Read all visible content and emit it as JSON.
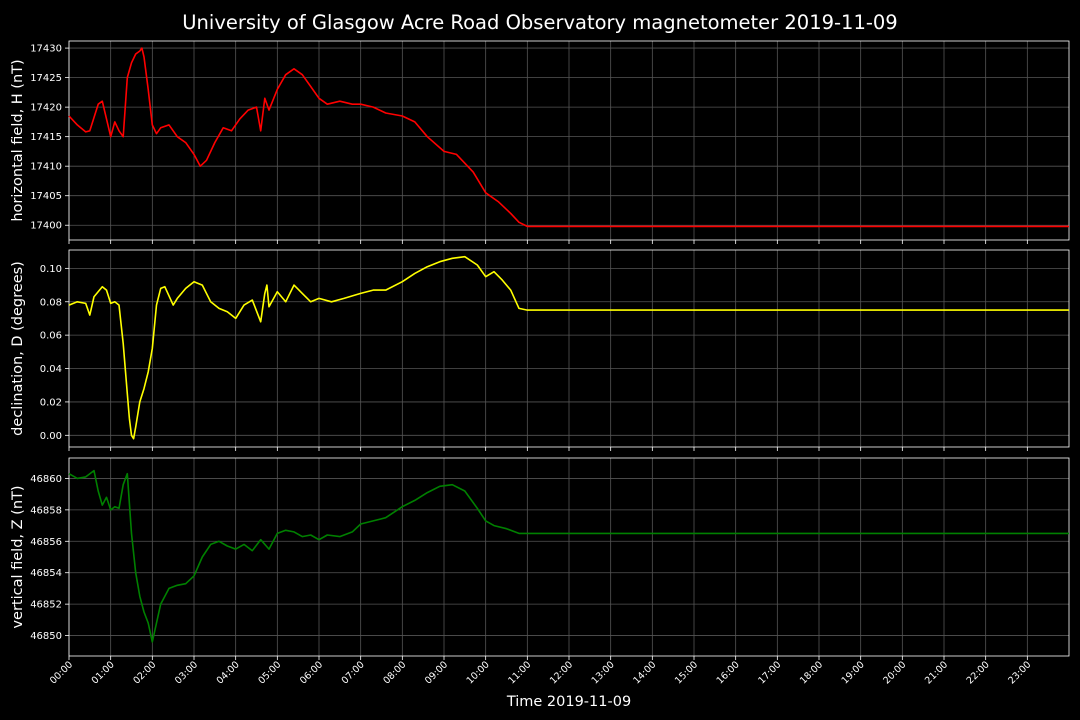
{
  "title": "University of Glasgow Acre Road Observatory magnetometer 2019-11-09",
  "xlabel": "Time 2019-11-09",
  "xticks": [
    "00:00",
    "01:00",
    "02:00",
    "03:00",
    "04:00",
    "05:00",
    "06:00",
    "07:00",
    "08:00",
    "09:00",
    "10:00",
    "11:00",
    "12:00",
    "13:00",
    "14:00",
    "15:00",
    "16:00",
    "17:00",
    "18:00",
    "19:00",
    "20:00",
    "21:00",
    "22:00",
    "23:00"
  ],
  "chart_data": [
    {
      "type": "line",
      "ylabel": "horizontal field, H (nT)",
      "color": "#ff0000",
      "ylim": [
        17397.5,
        17431.2
      ],
      "xlim": [
        0,
        24
      ],
      "yticks": [
        17400,
        17405,
        17410,
        17415,
        17420,
        17425,
        17430
      ],
      "grid": true,
      "series": [
        {
          "x": [
            0,
            0.2,
            0.4,
            0.5,
            0.7,
            0.8,
            0.9,
            1.0,
            1.1,
            1.2,
            1.3,
            1.4,
            1.5,
            1.6,
            1.7,
            1.75,
            1.8,
            1.9,
            2.0,
            2.1,
            2.2,
            2.4,
            2.6,
            2.8,
            3.0,
            3.15,
            3.3,
            3.5,
            3.7,
            3.9,
            4.1,
            4.3,
            4.5,
            4.6,
            4.7,
            4.8,
            5.0,
            5.2,
            5.4,
            5.6,
            5.8,
            6.0,
            6.2,
            6.5,
            6.8,
            7.0,
            7.3,
            7.6,
            8.0,
            8.3,
            8.6,
            9.0,
            9.3,
            9.5,
            9.7,
            10.0,
            10.3,
            10.6,
            10.8,
            11.0,
            24.0
          ],
          "y": [
            17418.5,
            17417.0,
            17415.8,
            17416.0,
            17420.5,
            17421.0,
            17418.0,
            17415.0,
            17417.5,
            17416.0,
            17415.0,
            17425.0,
            17427.5,
            17429.0,
            17429.5,
            17430.0,
            17428.5,
            17423.0,
            17417.0,
            17415.5,
            17416.5,
            17417.0,
            17415.0,
            17414.0,
            17412.0,
            17410.0,
            17411.0,
            17414.0,
            17416.5,
            17416.0,
            17418.0,
            17419.5,
            17420.0,
            17416.0,
            17421.5,
            17419.5,
            17423.0,
            17425.5,
            17426.5,
            17425.5,
            17423.5,
            17421.5,
            17420.5,
            17421.0,
            17420.5,
            17420.5,
            17420.0,
            17419.0,
            17418.5,
            17417.5,
            17415.0,
            17412.5,
            17412.0,
            17410.5,
            17409.0,
            17405.5,
            17404.0,
            17402.0,
            17400.5,
            17399.8,
            17399.8
          ]
        }
      ]
    },
    {
      "type": "line",
      "ylabel": "declination, D (degrees)",
      "color": "#ffff00",
      "ylim": [
        -0.007,
        0.111
      ],
      "xlim": [
        0,
        24
      ],
      "yticks": [
        0.0,
        0.02,
        0.04,
        0.06,
        0.08,
        0.1
      ],
      "yticklabels": [
        "0.00",
        "0.02",
        "0.04",
        "0.06",
        "0.08",
        "0.10"
      ],
      "grid": true,
      "series": [
        {
          "x": [
            0,
            0.2,
            0.4,
            0.5,
            0.6,
            0.8,
            0.9,
            1.0,
            1.1,
            1.2,
            1.3,
            1.4,
            1.45,
            1.5,
            1.55,
            1.6,
            1.7,
            1.8,
            1.9,
            2.0,
            2.1,
            2.2,
            2.3,
            2.5,
            2.6,
            2.8,
            3.0,
            3.2,
            3.4,
            3.6,
            3.8,
            4.0,
            4.2,
            4.4,
            4.6,
            4.7,
            4.75,
            4.8,
            5.0,
            5.2,
            5.4,
            5.6,
            5.8,
            6.0,
            6.3,
            6.6,
            7.0,
            7.3,
            7.6,
            8.0,
            8.3,
            8.6,
            8.9,
            9.2,
            9.5,
            9.8,
            10.0,
            10.2,
            10.4,
            10.6,
            10.8,
            11.0,
            24.0
          ],
          "y": [
            0.078,
            0.08,
            0.079,
            0.072,
            0.083,
            0.089,
            0.087,
            0.079,
            0.08,
            0.078,
            0.055,
            0.025,
            0.01,
            0.0,
            -0.002,
            0.005,
            0.02,
            0.028,
            0.038,
            0.052,
            0.078,
            0.088,
            0.089,
            0.078,
            0.082,
            0.088,
            0.092,
            0.09,
            0.08,
            0.076,
            0.074,
            0.07,
            0.078,
            0.081,
            0.068,
            0.085,
            0.09,
            0.077,
            0.086,
            0.08,
            0.09,
            0.085,
            0.08,
            0.082,
            0.08,
            0.082,
            0.085,
            0.087,
            0.087,
            0.092,
            0.097,
            0.101,
            0.104,
            0.106,
            0.107,
            0.102,
            0.095,
            0.098,
            0.093,
            0.087,
            0.076,
            0.075,
            0.075
          ]
        }
      ]
    },
    {
      "type": "line",
      "ylabel": "vertical field, Z (nT)",
      "color": "#008000",
      "ylim": [
        46848.7,
        46861.3
      ],
      "xlim": [
        0,
        24
      ],
      "yticks": [
        46850,
        46852,
        46854,
        46856,
        46858,
        46860
      ],
      "grid": true,
      "series": [
        {
          "x": [
            0,
            0.2,
            0.4,
            0.6,
            0.7,
            0.8,
            0.9,
            1.0,
            1.1,
            1.2,
            1.3,
            1.4,
            1.5,
            1.6,
            1.7,
            1.8,
            1.9,
            2.0,
            2.1,
            2.2,
            2.4,
            2.6,
            2.8,
            3.0,
            3.2,
            3.4,
            3.6,
            3.8,
            4.0,
            4.2,
            4.4,
            4.6,
            4.8,
            5.0,
            5.2,
            5.4,
            5.6,
            5.8,
            6.0,
            6.2,
            6.5,
            6.8,
            7.0,
            7.3,
            7.6,
            8.0,
            8.3,
            8.6,
            8.9,
            9.2,
            9.5,
            9.8,
            10.0,
            10.2,
            10.5,
            10.8,
            10.85,
            24.0
          ],
          "y": [
            46860.3,
            46860.0,
            46860.1,
            46860.5,
            46859.2,
            46858.3,
            46858.8,
            46858.0,
            46858.2,
            46858.1,
            46859.6,
            46860.3,
            46856.5,
            46854.0,
            46852.5,
            46851.5,
            46850.8,
            46849.6,
            46850.8,
            46852.0,
            46853.0,
            46853.2,
            46853.3,
            46853.8,
            46855.0,
            46855.8,
            46856.0,
            46855.7,
            46855.5,
            46855.8,
            46855.4,
            46856.1,
            46855.5,
            46856.5,
            46856.7,
            46856.6,
            46856.3,
            46856.4,
            46856.1,
            46856.4,
            46856.3,
            46856.6,
            46857.1,
            46857.3,
            46857.5,
            46858.2,
            46858.6,
            46859.1,
            46859.5,
            46859.6,
            46859.2,
            46858.1,
            46857.3,
            46857.0,
            46856.8,
            46856.5,
            46856.5,
            46856.5
          ]
        }
      ]
    }
  ]
}
